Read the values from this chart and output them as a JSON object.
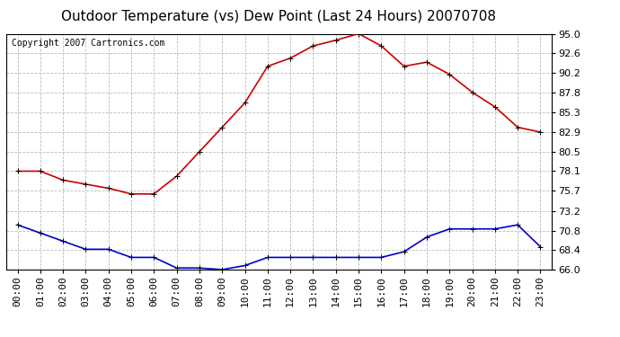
{
  "title": "Outdoor Temperature (vs) Dew Point (Last 24 Hours) 20070708",
  "copyright_text": "Copyright 2007 Cartronics.com",
  "hours": [
    "00:00",
    "01:00",
    "02:00",
    "03:00",
    "04:00",
    "05:00",
    "06:00",
    "07:00",
    "08:00",
    "09:00",
    "10:00",
    "11:00",
    "12:00",
    "13:00",
    "14:00",
    "15:00",
    "16:00",
    "17:00",
    "18:00",
    "19:00",
    "20:00",
    "21:00",
    "22:00",
    "23:00"
  ],
  "temp": [
    78.1,
    78.1,
    77.0,
    76.5,
    76.0,
    75.3,
    75.3,
    77.5,
    80.5,
    83.5,
    86.5,
    91.0,
    92.0,
    93.5,
    94.2,
    95.0,
    93.5,
    91.0,
    91.5,
    90.0,
    87.8,
    86.0,
    83.5,
    82.9
  ],
  "dew": [
    71.5,
    70.5,
    69.5,
    68.5,
    68.5,
    67.5,
    67.5,
    66.2,
    66.2,
    66.0,
    66.5,
    67.5,
    67.5,
    67.5,
    67.5,
    67.5,
    67.5,
    68.2,
    70.0,
    71.0,
    71.0,
    71.0,
    71.5,
    68.8
  ],
  "temp_color": "#cc0000",
  "dew_color": "#0000cc",
  "bg_color": "#ffffff",
  "grid_color": "#bbbbbb",
  "ylim_min": 66.0,
  "ylim_max": 95.0,
  "yticks": [
    66.0,
    68.4,
    70.8,
    73.2,
    75.7,
    78.1,
    80.5,
    82.9,
    85.3,
    87.8,
    90.2,
    92.6,
    95.0
  ],
  "title_fontsize": 11,
  "tick_fontsize": 8,
  "copyright_fontsize": 7,
  "marker": "+",
  "marker_size": 5,
  "linewidth": 1.2
}
